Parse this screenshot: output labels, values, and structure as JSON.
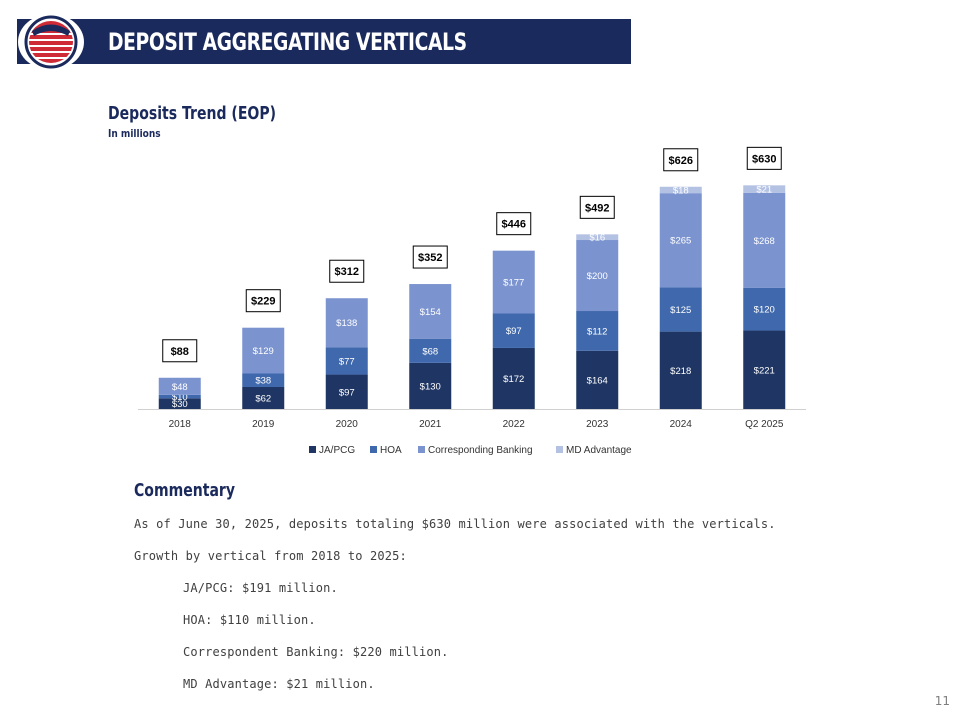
{
  "header": {
    "title": "DEPOSIT AGGREGATING VERTICALS"
  },
  "colors": {
    "navy": "#1b2a5c",
    "jpa": "#1f3664",
    "hoa": "#3f68ad",
    "cb": "#7b93cf",
    "md": "#b3c1e3"
  },
  "chart_data": {
    "type": "bar",
    "stacked": true,
    "title": "Deposits Trend (EOP)",
    "subtitle": "In millions",
    "categories": [
      "2018",
      "2019",
      "2020",
      "2021",
      "2022",
      "2023",
      "2024",
      "Q2 2025"
    ],
    "series": [
      {
        "name": "JA/PCG",
        "values": [
          30,
          62,
          97,
          130,
          172,
          164,
          218,
          221
        ]
      },
      {
        "name": "HOA",
        "values": [
          10,
          38,
          77,
          68,
          97,
          112,
          125,
          120
        ]
      },
      {
        "name": "Corresponding Banking",
        "values": [
          48,
          129,
          138,
          154,
          177,
          200,
          265,
          268
        ]
      },
      {
        "name": "MD Advantage",
        "values": [
          null,
          null,
          null,
          null,
          null,
          16,
          18,
          21
        ]
      }
    ],
    "totals": [
      "$88",
      "$229",
      "$312",
      "$352",
      "$446",
      "$492",
      "$626",
      "$630"
    ],
    "value_prefix": "$",
    "legend_position": "bottom",
    "grid": false
  },
  "commentary": {
    "title": "Commentary",
    "intro": "As of June 30, 2025, deposits totaling $630 million were associated with the verticals.",
    "growth_heading": "Growth by vertical from 2018 to 2025:",
    "items": [
      "JA/PCG: $191 million.",
      "HOA: $110 million.",
      "Correspondent Banking: $220 million.",
      "MD Advantage: $21 million."
    ]
  },
  "footer": {
    "page_number": "11"
  }
}
